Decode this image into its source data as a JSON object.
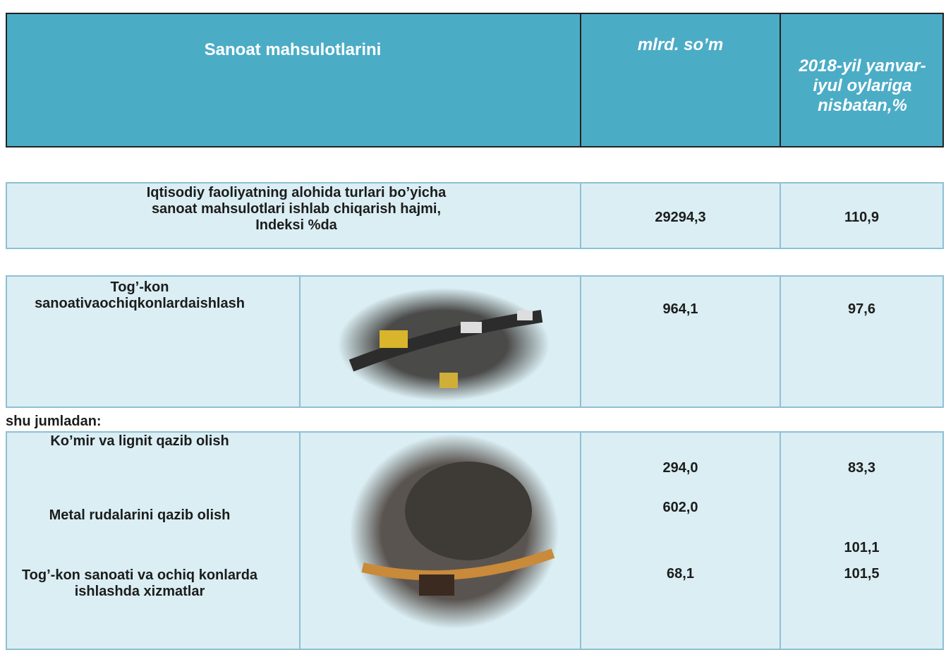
{
  "header": {
    "col1": "Sanoat mahsulotlarini",
    "col2": "mlrd. so’m",
    "col3": "2018-yil yanvar-iyul oylariga nisbatan,%"
  },
  "total": {
    "label": "Iqtisodiy faoliyatning alohida turlari bo’yicha sanoat mahsulotlari ishlab chiqarish hajmi, Indeksi %da",
    "value": "29294,3",
    "index": "110,9"
  },
  "mining": {
    "label": "Tog’-kon sanoativaochiqkonlardaishlash",
    "value": "964,1",
    "index": "97,6"
  },
  "including": "shu jumladan:",
  "subrows": [
    {
      "label": "Ko’mir va lignit qazib olish",
      "value": "294,0",
      "index": "83,3"
    },
    {
      "label": "Metal rudalarini qazib olish",
      "value": "602,0",
      "index": "101,1"
    },
    {
      "label": "Tog’-kon sanoati va ochiq konlarda ishlashda xizmatlar",
      "value": "68,1",
      "index": "101,5"
    }
  ]
}
